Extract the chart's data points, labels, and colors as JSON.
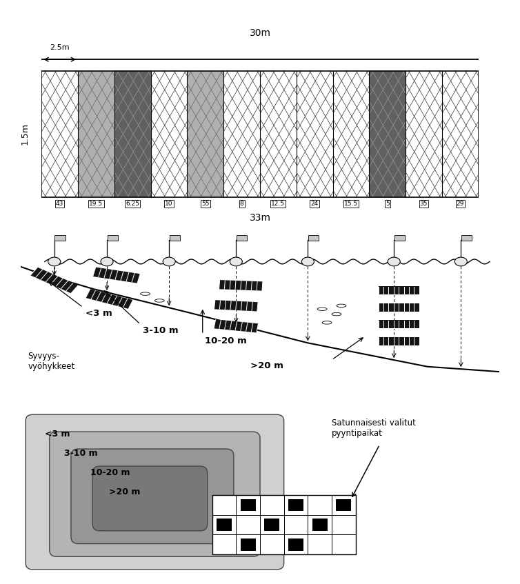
{
  "panel1_mesh_labels": [
    "43",
    "19.5",
    "6.25",
    "10",
    "55",
    "8",
    "12.5",
    "24",
    "15.5",
    "5",
    "35",
    "29"
  ],
  "panel1_mesh_shading": [
    0,
    1,
    2,
    0,
    1,
    0,
    0,
    0,
    0,
    2,
    0,
    0
  ],
  "top_label": "30m",
  "bottom_label": "33m",
  "left_label": "1.5m",
  "top_arrow_label": "2.5m",
  "depth_zones": [
    "<3 m",
    "3-10 m",
    "10-20 m",
    ">20 m"
  ],
  "syvyys_label": "Syvyys-\nvyöhykkeet",
  "satunnaisesti_label": "Satunnaisesti valitut\npyyntipaikat",
  "contour_labels": [
    "<3 m",
    "3-10 m",
    "10-20 m",
    ">20 m"
  ],
  "contour_colors": [
    "#d0d0d0",
    "#b4b4b4",
    "#969696",
    "#787878"
  ],
  "bg_color": "#ffffff",
  "line_color": "#000000",
  "grid_rows": 3,
  "grid_cols": 6,
  "shade_light": "#b0b0b0",
  "shade_dark": "#606060"
}
